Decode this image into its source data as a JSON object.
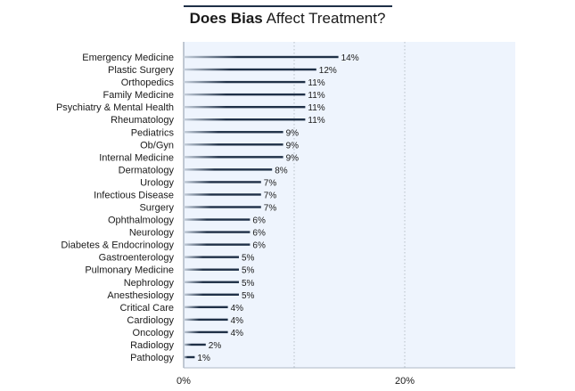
{
  "chart_data": {
    "type": "bar",
    "orientation": "horizontal",
    "title_bold": "Does Bias",
    "title_rest": "Affect Treatment?",
    "categories": [
      "Emergency Medicine",
      "Plastic Surgery",
      "Orthopedics",
      "Family Medicine",
      "Psychiatry & Mental Health",
      "Rheumatology",
      "Pediatrics",
      "Ob/Gyn",
      "Internal Medicine",
      "Dermatology",
      "Urology",
      "Infectious Disease",
      "Surgery",
      "Ophthalmology",
      "Neurology",
      "Diabetes & Endocrinology",
      "Gastroenterology",
      "Pulmonary Medicine",
      "Nephrology",
      "Anesthesiology",
      "Critical Care",
      "Cardiology",
      "Oncology",
      "Radiology",
      "Pathology"
    ],
    "values": [
      14,
      12,
      11,
      11,
      11,
      11,
      9,
      9,
      9,
      8,
      7,
      7,
      7,
      6,
      6,
      6,
      5,
      5,
      5,
      5,
      4,
      4,
      4,
      2,
      1
    ],
    "value_suffix": "%",
    "xlim": [
      0,
      30
    ],
    "xticks": [
      0,
      20
    ],
    "xtick_labels": [
      "0%",
      "20%"
    ],
    "gridlines": [
      10,
      20
    ],
    "grid": true,
    "colors": {
      "bar": "#1f3047",
      "plot_bg": "#eef4fd",
      "grid": "#b8bfc8"
    }
  }
}
